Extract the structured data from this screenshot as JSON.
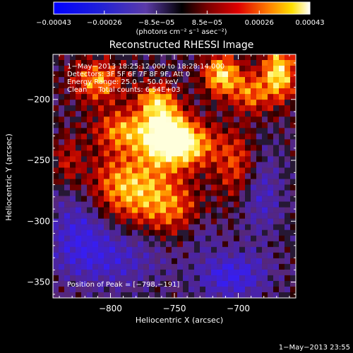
{
  "chart_data": {
    "type": "heatmap",
    "title": "Reconstructed RHESSI Image",
    "xlabel": "Heliocentric X (arcsec)",
    "ylabel": "Heliocentric Y (arcsec)",
    "xlim": [
      -845,
      -655
    ],
    "ylim": [
      -363,
      -163
    ],
    "x_ticks": [
      -800,
      -750,
      -700
    ],
    "x_tick_labels": [
      "−800",
      "−750",
      "−700"
    ],
    "y_ticks": [
      -200,
      -250,
      -300,
      -350
    ],
    "y_tick_labels": [
      "−200",
      "−250",
      "−300",
      "−350"
    ],
    "colorbar": {
      "ticks": [
        -0.00043,
        -0.00026,
        -8.5e-05,
        8.5e-05,
        0.00026,
        0.00043
      ],
      "tick_labels": [
        "−0.00043",
        "−0.00026",
        "−8.5e−05",
        "8.5e−05",
        "0.00026",
        "0.00043"
      ],
      "range": [
        -0.00043,
        0.00043
      ],
      "label": "(photons cm⁻² s⁻¹ asec⁻²)"
    },
    "annotations": [
      "1−May−2013 18:25:12.000 to 18:28:14.000",
      "Detectors: 3F 5F 6F 7F 8F 9F, Att 0",
      "Energy Range: 25.0 − 50.0 keV",
      "Clean     Total counts: 6.54E+03"
    ],
    "peak_label": "Position of Peak = [−798,−191]",
    "peak_position": [
      -798,
      -191
    ],
    "blobs": [
      {
        "x": -745,
        "y": -237,
        "amp": 1.0,
        "sx": 18,
        "sy": 13
      },
      {
        "x": -758,
        "y": -222,
        "amp": 0.75,
        "sx": 12,
        "sy": 16
      },
      {
        "x": -713,
        "y": -180,
        "amp": 0.85,
        "sx": 10,
        "sy": 12
      },
      {
        "x": -668,
        "y": -178,
        "amp": 0.9,
        "sx": 9,
        "sy": 16
      },
      {
        "x": -810,
        "y": -185,
        "amp": 0.65,
        "sx": 14,
        "sy": 12
      },
      {
        "x": -790,
        "y": -225,
        "amp": 0.6,
        "sx": 16,
        "sy": 12
      },
      {
        "x": -785,
        "y": -272,
        "amp": 0.75,
        "sx": 22,
        "sy": 20
      },
      {
        "x": -752,
        "y": -290,
        "amp": 0.45,
        "sx": 16,
        "sy": 16
      },
      {
        "x": -700,
        "y": -255,
        "amp": 0.5,
        "sx": 12,
        "sy": 20
      },
      {
        "x": -690,
        "y": -195,
        "amp": 0.55,
        "sx": 10,
        "sy": 12
      },
      {
        "x": -765,
        "y": -200,
        "amp": 0.55,
        "sx": 10,
        "sy": 9
      },
      {
        "x": -833,
        "y": -250,
        "amp": 0.3,
        "sx": 8,
        "sy": 14
      },
      {
        "x": -800,
        "y": -330,
        "amp": -0.4,
        "sx": 30,
        "sy": 18
      },
      {
        "x": -705,
        "y": -345,
        "amp": -0.55,
        "sx": 20,
        "sy": 14
      },
      {
        "x": -825,
        "y": -305,
        "amp": -0.4,
        "sx": 16,
        "sy": 22
      },
      {
        "x": -683,
        "y": -275,
        "amp": -0.4,
        "sx": 12,
        "sy": 26
      },
      {
        "x": -728,
        "y": -310,
        "amp": -0.2,
        "sx": 10,
        "sy": 10
      }
    ]
  },
  "footer": {
    "timestamp": "1−May−2013 23:55"
  }
}
